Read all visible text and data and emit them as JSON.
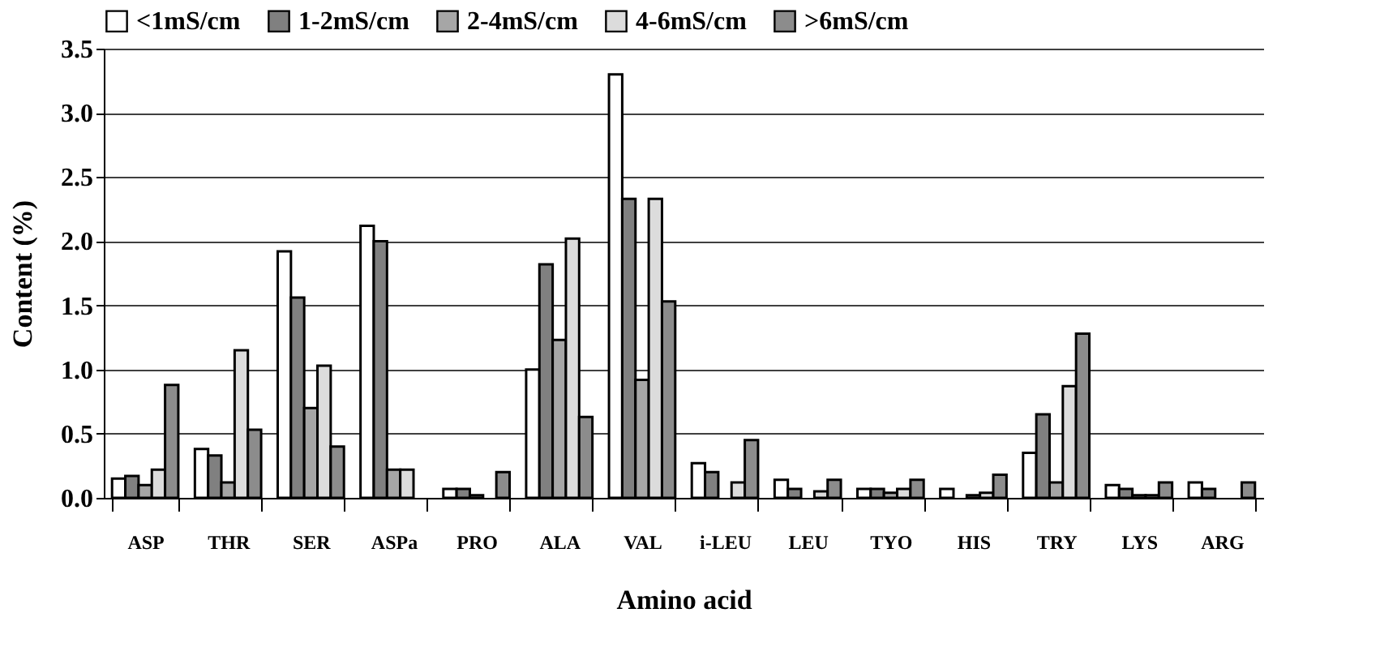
{
  "chart_data": {
    "type": "bar",
    "xlabel": "Amino acid",
    "ylabel": "Content (%)",
    "categories": [
      "ASP",
      "THR",
      "SER",
      "ASPa",
      "PRO",
      "ALA",
      "VAL",
      "i-LEU",
      "LEU",
      "TYO",
      "HIS",
      "TRY",
      "LYS",
      "ARG"
    ],
    "series": [
      {
        "name": "<1mS/cm",
        "color": "#ffffff",
        "values": [
          0.15,
          0.38,
          1.92,
          2.12,
          0.07,
          1.0,
          3.3,
          0.27,
          0.14,
          0.07,
          0.07,
          0.35,
          0.1,
          0.12
        ]
      },
      {
        "name": "1-2mS/cm",
        "color": "#808080",
        "values": [
          0.17,
          0.33,
          1.56,
          2.0,
          0.07,
          1.82,
          2.33,
          0.2,
          0.07,
          0.07,
          null,
          0.65,
          0.07,
          0.07
        ]
      },
      {
        "name": "2-4mS/cm",
        "color": "#a6a6a6",
        "values": [
          0.1,
          0.12,
          0.7,
          0.22,
          0.02,
          1.23,
          0.92,
          null,
          null,
          0.04,
          0.02,
          0.12,
          0.02,
          null
        ]
      },
      {
        "name": "4-6mS/cm",
        "color": "#dcdcdc",
        "values": [
          0.22,
          1.15,
          1.03,
          0.22,
          null,
          2.02,
          2.33,
          0.12,
          0.05,
          0.07,
          0.04,
          0.87,
          0.02,
          null
        ]
      },
      {
        "name": ">6mS/cm",
        "color": "#8c8c8c",
        "values": [
          0.88,
          0.53,
          0.4,
          null,
          0.2,
          0.63,
          1.53,
          0.45,
          0.14,
          0.14,
          0.18,
          1.28,
          0.12,
          0.12
        ]
      }
    ],
    "ylim": [
      0,
      3.5
    ],
    "yticks": [
      {
        "value": 0,
        "label": "0.0"
      },
      {
        "value": 0.5,
        "label": "0.5"
      },
      {
        "value": 1,
        "label": "1.0"
      },
      {
        "value": 1.5,
        "label": "1.5"
      },
      {
        "value": 2,
        "label": "2.0"
      },
      {
        "value": 2.5,
        "label": "2.5"
      },
      {
        "value": 3,
        "label": "3.0"
      },
      {
        "value": 3.5,
        "label": "3.5"
      }
    ],
    "grid": "y",
    "legend": "top"
  }
}
